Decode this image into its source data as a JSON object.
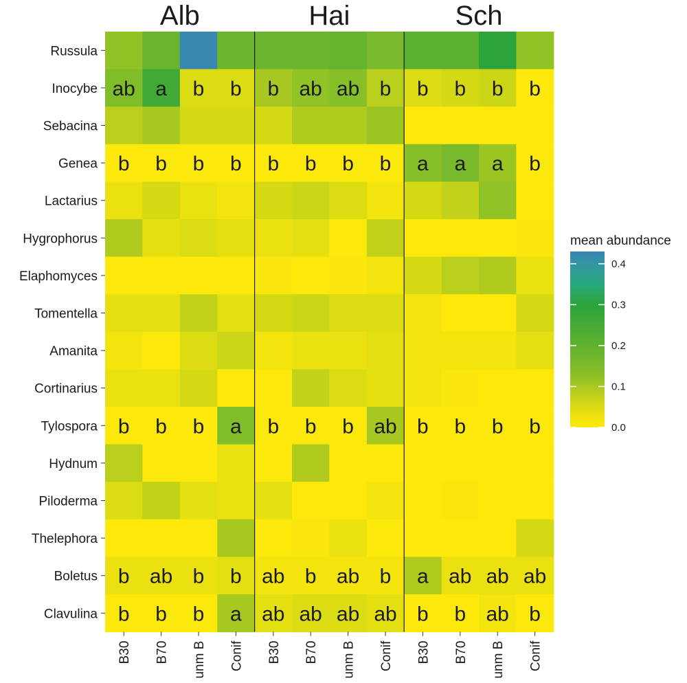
{
  "chart_data": {
    "type": "heatmap",
    "facets": [
      "Alb",
      "Hai",
      "Sch"
    ],
    "columns": [
      "B30",
      "B70",
      "unm B",
      "Conif"
    ],
    "rows": [
      "Russula",
      "Inocybe",
      "Sebacina",
      "Genea",
      "Lactarius",
      "Hygrophorus",
      "Elaphomyces",
      "Tomentella",
      "Amanita",
      "Cortinarius",
      "Tylospora",
      "Hydnum",
      "Piloderma",
      "Thelephora",
      "Boletus",
      "Clavulina"
    ],
    "values": [
      [
        0.12,
        0.17,
        0.42,
        0.17,
        0.17,
        0.17,
        0.18,
        0.15,
        0.19,
        0.19,
        0.26,
        0.12
      ],
      [
        0.14,
        0.23,
        0.04,
        0.04,
        0.1,
        0.12,
        0.13,
        0.08,
        0.04,
        0.05,
        0.06,
        0.0
      ],
      [
        0.08,
        0.1,
        0.05,
        0.05,
        0.05,
        0.09,
        0.09,
        0.11,
        0.0,
        0.0,
        0.0,
        0.0
      ],
      [
        0.0,
        0.0,
        0.0,
        0.0,
        0.0,
        0.0,
        0.0,
        0.0,
        0.13,
        0.15,
        0.11,
        0.0
      ],
      [
        0.02,
        0.05,
        0.02,
        0.01,
        0.05,
        0.06,
        0.04,
        0.01,
        0.05,
        0.07,
        0.12,
        0.0
      ],
      [
        0.09,
        0.03,
        0.04,
        0.03,
        0.02,
        0.03,
        0.0,
        0.07,
        0.0,
        0.0,
        0.0,
        0.005
      ],
      [
        0.0,
        0.0,
        0.0,
        0.0,
        0.005,
        0.0,
        0.005,
        0.01,
        0.05,
        0.08,
        0.09,
        0.02
      ],
      [
        0.03,
        0.03,
        0.07,
        0.03,
        0.05,
        0.06,
        0.04,
        0.04,
        0.01,
        0.0,
        0.0,
        0.05
      ],
      [
        0.01,
        0.0,
        0.04,
        0.06,
        0.01,
        0.02,
        0.02,
        0.03,
        0.01,
        0.01,
        0.01,
        0.03
      ],
      [
        0.02,
        0.02,
        0.05,
        0.0,
        0.0,
        0.07,
        0.04,
        0.03,
        0.01,
        0.005,
        0.0,
        0.0
      ],
      [
        0.0,
        0.0,
        0.0,
        0.14,
        0.0,
        0.0,
        0.0,
        0.1,
        0.0,
        0.0,
        0.0,
        0.0
      ],
      [
        0.08,
        0.0,
        0.0,
        0.02,
        0.0,
        0.09,
        0.0,
        0.0,
        0.0,
        0.0,
        0.0,
        0.0
      ],
      [
        0.04,
        0.07,
        0.03,
        0.02,
        0.03,
        0.0,
        0.0,
        0.01,
        0.0,
        0.005,
        0.0,
        0.0
      ],
      [
        0.0,
        0.0,
        0.0,
        0.1,
        0.0,
        0.005,
        0.02,
        0.0,
        0.0,
        0.0,
        0.0,
        0.05
      ],
      [
        0.02,
        0.02,
        0.02,
        0.03,
        0.01,
        0.01,
        0.01,
        0.01,
        0.09,
        0.02,
        0.02,
        0.02
      ],
      [
        0.0,
        0.0,
        0.0,
        0.1,
        0.03,
        0.04,
        0.04,
        0.03,
        0.0,
        0.0,
        0.01,
        0.0
      ]
    ],
    "letters": [
      [
        "",
        "",
        "",
        "",
        "",
        "",
        "",
        "",
        "",
        "",
        "",
        ""
      ],
      [
        "ab",
        "a",
        "b",
        "b",
        "b",
        "ab",
        "ab",
        "b",
        "b",
        "b",
        "b",
        "b"
      ],
      [
        "",
        "",
        "",
        "",
        "",
        "",
        "",
        "",
        "",
        "",
        "",
        ""
      ],
      [
        "b",
        "b",
        "b",
        "b",
        "b",
        "b",
        "b",
        "b",
        "a",
        "a",
        "a",
        "b"
      ],
      [
        "",
        "",
        "",
        "",
        "",
        "",
        "",
        "",
        "",
        "",
        "",
        ""
      ],
      [
        "",
        "",
        "",
        "",
        "",
        "",
        "",
        "",
        "",
        "",
        "",
        ""
      ],
      [
        "",
        "",
        "",
        "",
        "",
        "",
        "",
        "",
        "",
        "",
        "",
        ""
      ],
      [
        "",
        "",
        "",
        "",
        "",
        "",
        "",
        "",
        "",
        "",
        "",
        ""
      ],
      [
        "",
        "",
        "",
        "",
        "",
        "",
        "",
        "",
        "",
        "",
        "",
        ""
      ],
      [
        "",
        "",
        "",
        "",
        "",
        "",
        "",
        "",
        "",
        "",
        "",
        ""
      ],
      [
        "b",
        "b",
        "b",
        "a",
        "b",
        "b",
        "b",
        "ab",
        "b",
        "b",
        "b",
        "b"
      ],
      [
        "",
        "",
        "",
        "",
        "",
        "",
        "",
        "",
        "",
        "",
        "",
        ""
      ],
      [
        "",
        "",
        "",
        "",
        "",
        "",
        "",
        "",
        "",
        "",
        "",
        ""
      ],
      [
        "",
        "",
        "",
        "",
        "",
        "",
        "",
        "",
        "",
        "",
        "",
        ""
      ],
      [
        "b",
        "ab",
        "b",
        "b",
        "ab",
        "b",
        "ab",
        "b",
        "a",
        "ab",
        "ab",
        "ab"
      ],
      [
        "b",
        "b",
        "b",
        "a",
        "ab",
        "ab",
        "ab",
        "ab",
        "b",
        "b",
        "ab",
        "b"
      ]
    ],
    "legend": {
      "title": "mean abundance",
      "ticks": [
        "0.0",
        "0.1",
        "0.2",
        "0.3",
        "0.4"
      ],
      "tick_values": [
        0,
        0.1,
        0.2,
        0.3,
        0.4
      ],
      "range": [
        0,
        0.43
      ]
    },
    "colors": {
      "low": "#fde80b",
      "mid_low": "#c9d41a",
      "mid": "#6ab42c",
      "mid_high": "#2aa43b",
      "teal": "#27a882",
      "high": "#3a84b4",
      "separator": "#1a1a1a"
    }
  }
}
